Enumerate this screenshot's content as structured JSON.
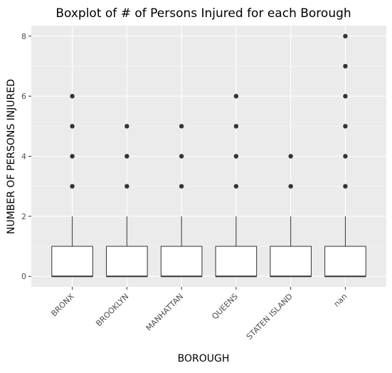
{
  "chart_data": {
    "type": "boxplot",
    "title": "Boxplot of # of Persons Injured for each Borough",
    "xlabel": "BOROUGH",
    "ylabel": "NUMBER OF PERSONS INJURED",
    "categories": [
      "BRONX",
      "BROOKLYN",
      "MANHATTAN",
      "QUEENS",
      "STATEN ISLAND",
      "nan"
    ],
    "ylim": [
      -0.35,
      8.35
    ],
    "yticks": [
      0,
      2,
      4,
      6,
      8
    ],
    "grid": true,
    "legend": "none",
    "boxes": [
      {
        "category": "BRONX",
        "min": 0,
        "q1": 0,
        "median": 0,
        "q3": 1,
        "max": 2,
        "outliers": [
          3,
          4,
          5,
          6
        ]
      },
      {
        "category": "BROOKLYN",
        "min": 0,
        "q1": 0,
        "median": 0,
        "q3": 1,
        "max": 2,
        "outliers": [
          3,
          4,
          5
        ]
      },
      {
        "category": "MANHATTAN",
        "min": 0,
        "q1": 0,
        "median": 0,
        "q3": 1,
        "max": 2,
        "outliers": [
          3,
          4,
          5
        ]
      },
      {
        "category": "QUEENS",
        "min": 0,
        "q1": 0,
        "median": 0,
        "q3": 1,
        "max": 2,
        "outliers": [
          3,
          4,
          5,
          6
        ]
      },
      {
        "category": "STATEN ISLAND",
        "min": 0,
        "q1": 0,
        "median": 0,
        "q3": 1,
        "max": 2,
        "outliers": [
          3,
          4
        ]
      },
      {
        "category": "nan",
        "min": 0,
        "q1": 0,
        "median": 0,
        "q3": 1,
        "max": 2,
        "outliers": [
          3,
          4,
          5,
          6,
          7,
          8
        ]
      }
    ],
    "colors": {
      "panel_background": "#EBEBEB",
      "grid_major": "#FFFFFF",
      "box_fill": "#FFFFFF",
      "box_stroke": "#333333",
      "outlier": "#333333",
      "tick_text": "#4D4D4D",
      "title_text": "#000000"
    }
  }
}
